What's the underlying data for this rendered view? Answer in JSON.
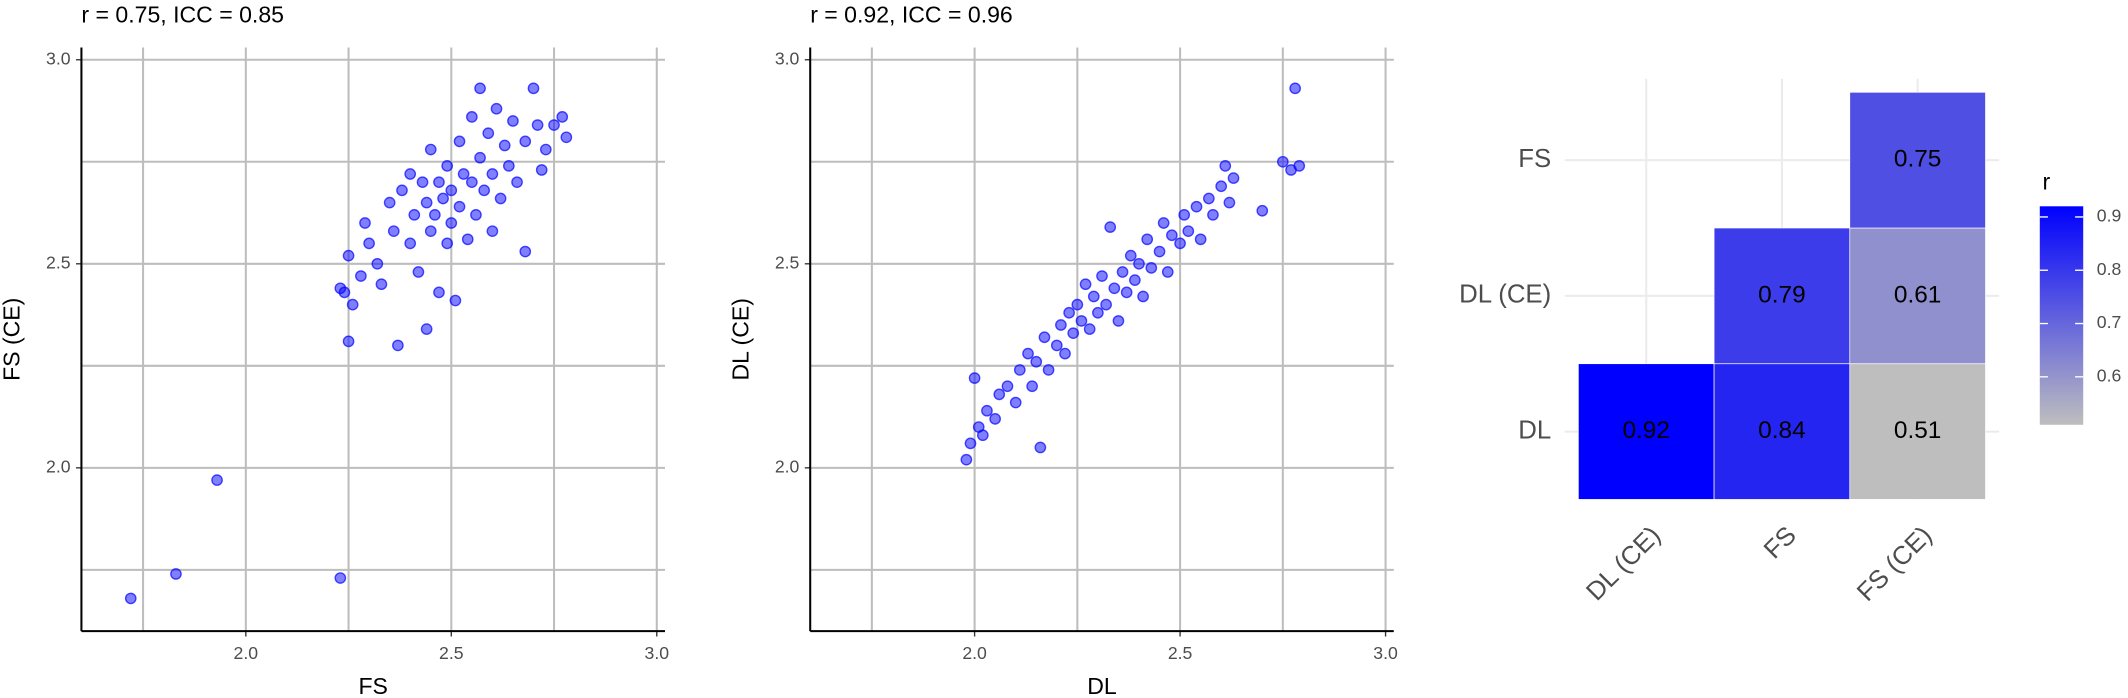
{
  "chart_data": [
    {
      "type": "scatter",
      "title": "r = 0.75, ICC = 0.85",
      "xlabel": "FS",
      "ylabel": "FS (CE)",
      "color": "#0000ff",
      "x": [
        2.24,
        2.25,
        2.23,
        2.26,
        2.25,
        2.28,
        2.3,
        2.29,
        2.32,
        2.33,
        2.35,
        2.36,
        2.37,
        2.38,
        2.4,
        2.4,
        2.41,
        2.42,
        2.43,
        2.44,
        2.44,
        2.45,
        2.45,
        2.46,
        2.47,
        2.47,
        2.48,
        2.49,
        2.49,
        2.5,
        2.5,
        2.51,
        2.52,
        2.52,
        2.53,
        2.54,
        2.55,
        2.55,
        2.56,
        2.57,
        2.57,
        2.58,
        2.59,
        2.6,
        2.6,
        2.61,
        2.62,
        2.63,
        2.64,
        2.65,
        2.66,
        2.68,
        2.68,
        2.7,
        2.71,
        2.72,
        2.73,
        2.75,
        2.77,
        2.78,
        1.72,
        1.83,
        1.93,
        2.23
      ],
      "y": [
        2.43,
        2.52,
        2.44,
        2.4,
        2.31,
        2.47,
        2.55,
        2.6,
        2.5,
        2.45,
        2.65,
        2.58,
        2.3,
        2.68,
        2.55,
        2.72,
        2.62,
        2.48,
        2.7,
        2.34,
        2.65,
        2.58,
        2.78,
        2.62,
        2.43,
        2.7,
        2.66,
        2.55,
        2.74,
        2.68,
        2.6,
        2.41,
        2.8,
        2.64,
        2.72,
        2.56,
        2.7,
        2.86,
        2.62,
        2.76,
        2.93,
        2.68,
        2.82,
        2.58,
        2.72,
        2.88,
        2.66,
        2.79,
        2.74,
        2.85,
        2.7,
        2.53,
        2.8,
        2.93,
        2.84,
        2.73,
        2.78,
        2.84,
        2.86,
        2.81,
        1.68,
        1.74,
        1.97,
        1.73
      ],
      "xlim": [
        1.6,
        3.02
      ],
      "ylim": [
        1.6,
        3.03
      ],
      "xticks": [
        {
          "value": 2,
          "label": "2.0"
        },
        2.5,
        {
          "value": 3,
          "label": "3.0"
        }
      ],
      "yticks": [
        {
          "value": 2,
          "label": "2.0"
        },
        2.5,
        {
          "value": 3,
          "label": "3.0"
        }
      ],
      "xminor": [
        1.75,
        2.25,
        2.75
      ],
      "yminor": [
        1.75,
        2.25,
        2.75
      ],
      "grid": true
    },
    {
      "type": "scatter",
      "title": "r = 0.92, ICC = 0.96",
      "xlabel": "DL",
      "ylabel": "DL (CE)",
      "color": "#0000ff",
      "x": [
        1.98,
        1.99,
        2.0,
        2.01,
        2.02,
        2.03,
        2.05,
        2.06,
        2.08,
        2.1,
        2.11,
        2.13,
        2.14,
        2.15,
        2.16,
        2.17,
        2.18,
        2.2,
        2.21,
        2.22,
        2.23,
        2.24,
        2.25,
        2.26,
        2.27,
        2.28,
        2.29,
        2.3,
        2.31,
        2.32,
        2.33,
        2.34,
        2.35,
        2.36,
        2.37,
        2.38,
        2.39,
        2.4,
        2.41,
        2.42,
        2.43,
        2.45,
        2.46,
        2.47,
        2.48,
        2.5,
        2.51,
        2.52,
        2.54,
        2.55,
        2.57,
        2.58,
        2.6,
        2.61,
        2.62,
        2.63,
        2.7,
        2.75,
        2.77,
        2.79,
        2.78
      ],
      "y": [
        2.02,
        2.06,
        2.22,
        2.1,
        2.08,
        2.14,
        2.12,
        2.18,
        2.2,
        2.16,
        2.24,
        2.28,
        2.2,
        2.26,
        2.05,
        2.32,
        2.24,
        2.3,
        2.35,
        2.28,
        2.38,
        2.33,
        2.4,
        2.36,
        2.45,
        2.34,
        2.42,
        2.38,
        2.47,
        2.4,
        2.59,
        2.44,
        2.36,
        2.48,
        2.43,
        2.52,
        2.46,
        2.5,
        2.42,
        2.56,
        2.49,
        2.53,
        2.6,
        2.48,
        2.57,
        2.55,
        2.62,
        2.58,
        2.64,
        2.56,
        2.66,
        2.62,
        2.69,
        2.74,
        2.65,
        2.71,
        2.63,
        2.75,
        2.73,
        2.74,
        2.93
      ],
      "xlim": [
        1.6,
        3.02
      ],
      "ylim": [
        1.6,
        3.03
      ],
      "xticks": [
        {
          "value": 2,
          "label": "2.0"
        },
        2.5,
        {
          "value": 3,
          "label": "3.0"
        }
      ],
      "yticks": [
        {
          "value": 2,
          "label": "2.0"
        },
        2.5,
        {
          "value": 3,
          "label": "3.0"
        }
      ],
      "xminor": [
        1.75,
        2.25,
        2.75
      ],
      "yminor": [
        1.75,
        2.25,
        2.75
      ],
      "grid": true
    },
    {
      "type": "heatmap",
      "x_categories": [
        "DL (CE)",
        "FS",
        "FS (CE)"
      ],
      "y_categories": [
        "DL",
        "DL (CE)",
        "FS"
      ],
      "values": [
        [
          0.92,
          0.84,
          0.51
        ],
        [
          null,
          0.79,
          0.61
        ],
        [
          null,
          null,
          0.75
        ]
      ],
      "legend_title": "r",
      "color_low": "#bebebe",
      "color_high": "#0000ff",
      "clim": [
        0.51,
        0.92
      ],
      "cticks": [
        0.6,
        0.7,
        0.8,
        0.9
      ],
      "legend": "right"
    }
  ]
}
